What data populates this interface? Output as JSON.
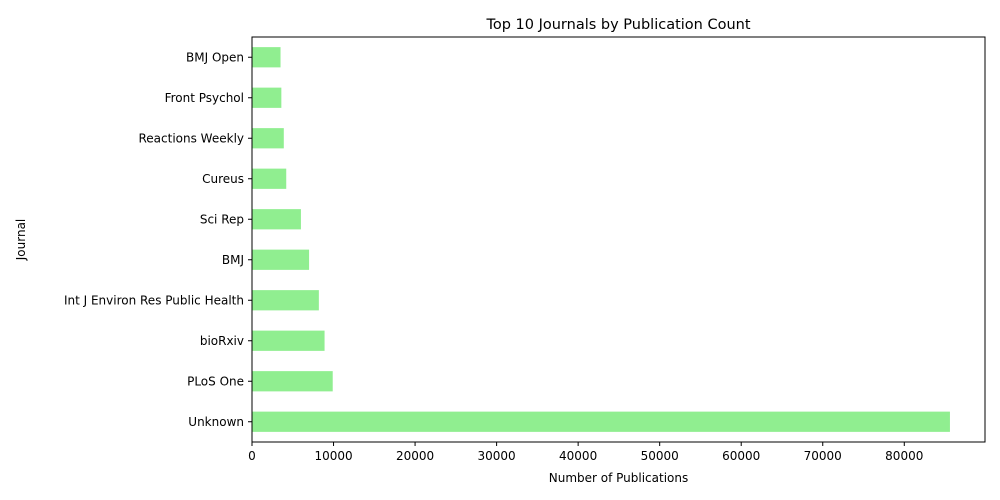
{
  "colors": {
    "bar": "#90ee90",
    "axis": "#000000",
    "background": "#ffffff"
  },
  "chart_data": {
    "type": "bar",
    "orientation": "horizontal",
    "title": "Top 10 Journals by Publication Count",
    "xlabel": "Number of Publications",
    "ylabel": "Journal",
    "categories": [
      "Unknown",
      "PLoS One",
      "bioRxiv",
      "Int J Environ Res Public Health",
      "BMJ",
      "Sci Rep",
      "Cureus",
      "Reactions Weekly",
      "Front Psychol",
      "BMJ Open"
    ],
    "values": [
      85600,
      9900,
      8900,
      8200,
      7000,
      6000,
      4200,
      3900,
      3600,
      3500
    ],
    "xlim": [
      0,
      89900
    ],
    "xticks": [
      0,
      10000,
      20000,
      30000,
      40000,
      50000,
      60000,
      70000,
      80000
    ],
    "xtick_labels": [
      "0",
      "10000",
      "20000",
      "30000",
      "40000",
      "50000",
      "60000",
      "70000",
      "80000"
    ],
    "grid": false,
    "legend": "none"
  }
}
